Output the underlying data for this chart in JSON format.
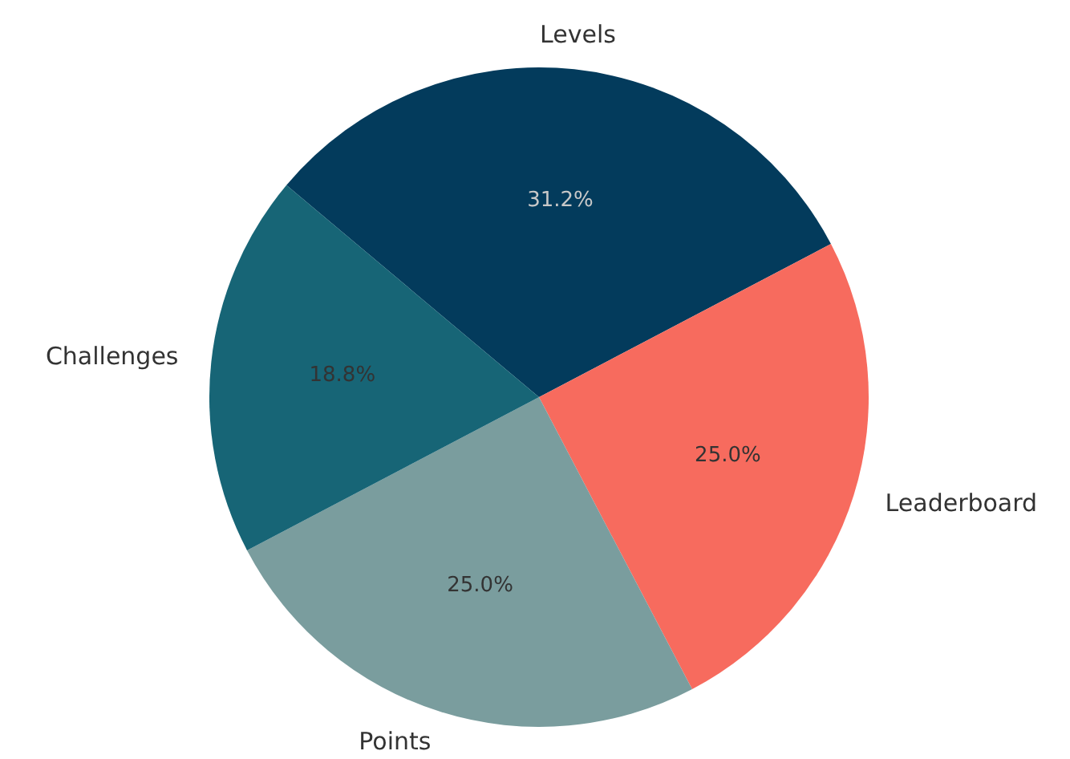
{
  "chart_data": {
    "type": "pie",
    "categories": [
      "Levels",
      "Leaderboard",
      "Points",
      "Challenges"
    ],
    "values": [
      31.2,
      25.0,
      25.0,
      18.8
    ],
    "colors": [
      "#033b5c",
      "#f76b5e",
      "#7a9d9e",
      "#176576"
    ],
    "value_labels": [
      "31.2%",
      "25.0%",
      "25.0%",
      "18.8%"
    ]
  }
}
